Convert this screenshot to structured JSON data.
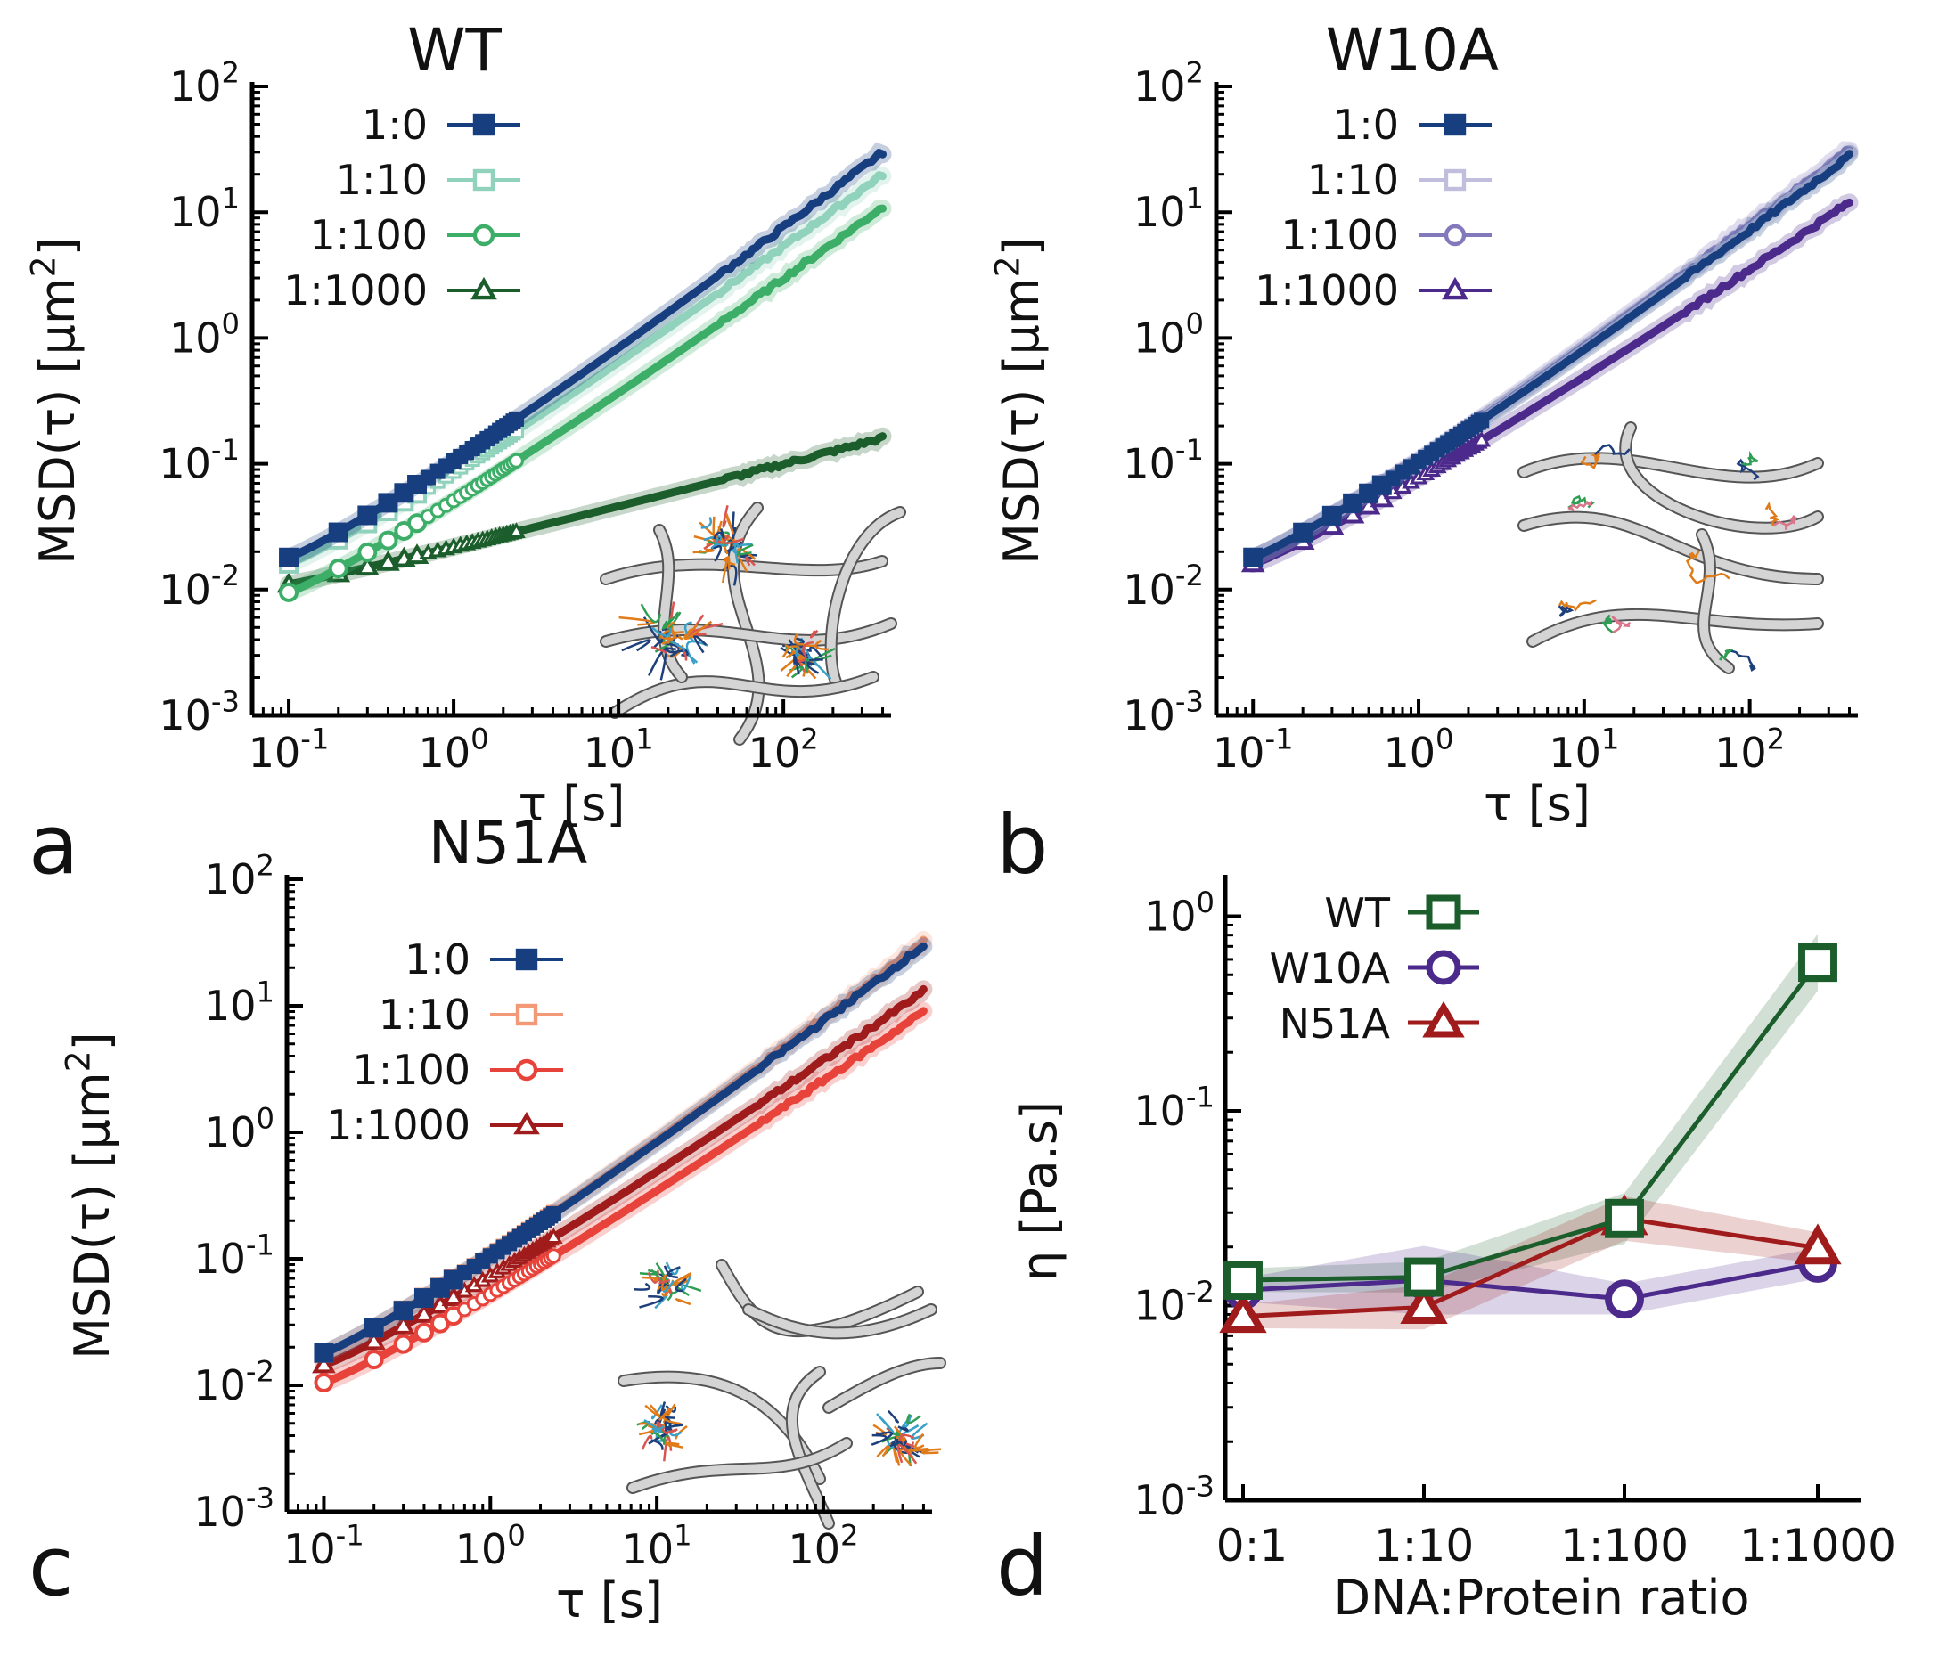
{
  "figure": {
    "panel_labels": [
      "a",
      "b",
      "c",
      "d"
    ]
  },
  "chart_data": [
    {
      "type": "line",
      "panel": "a",
      "title": "WT",
      "xlabel": "τ [s]",
      "ylabel": "MSD(τ) [μm²]",
      "xscale": "log",
      "yscale": "log",
      "xlim": [
        0.06,
        450
      ],
      "ylim": [
        0.001,
        100
      ],
      "xticks": [
        0.1,
        1,
        10,
        100
      ],
      "xtick_labels": [
        {
          "base": "10",
          "exp": "-1"
        },
        {
          "base": "10",
          "exp": "0"
        },
        {
          "base": "10",
          "exp": "1"
        },
        {
          "base": "10",
          "exp": "2"
        }
      ],
      "yticks": [
        0.001,
        0.01,
        0.1,
        1,
        10,
        100
      ],
      "ytick_labels": [
        {
          "base": "10",
          "exp": "-3"
        },
        {
          "base": "10",
          "exp": "-2"
        },
        {
          "base": "10",
          "exp": "-1"
        },
        {
          "base": "10",
          "exp": "0"
        },
        {
          "base": "10",
          "exp": "1"
        },
        {
          "base": "10",
          "exp": "2"
        }
      ],
      "legend_position": "top-left",
      "series": [
        {
          "name": "1:0",
          "color": "#173f80",
          "marker": "square-filled",
          "y0": 0.018,
          "y1": 30
        },
        {
          "name": "1:10",
          "color": "#91d2bc",
          "marker": "square-open",
          "y0": 0.016,
          "y1": 20
        },
        {
          "name": "1:100",
          "color": "#3dae68",
          "marker": "circle-open",
          "y0": 0.0095,
          "y1": 11
        },
        {
          "name": "1:1000",
          "color": "#1b5e2c",
          "marker": "triangle-open",
          "y0": 0.011,
          "y1": 0.16
        }
      ],
      "inset": "network-with-clusters"
    },
    {
      "type": "line",
      "panel": "b",
      "title": "W10A",
      "xlabel": "τ [s]",
      "ylabel": "MSD(τ) [μm²]",
      "xscale": "log",
      "yscale": "log",
      "xlim": [
        0.06,
        450
      ],
      "ylim": [
        0.001,
        100
      ],
      "xticks": [
        0.1,
        1,
        10,
        100
      ],
      "xtick_labels": [
        {
          "base": "10",
          "exp": "-1"
        },
        {
          "base": "10",
          "exp": "0"
        },
        {
          "base": "10",
          "exp": "1"
        },
        {
          "base": "10",
          "exp": "2"
        }
      ],
      "yticks": [
        0.001,
        0.01,
        0.1,
        1,
        10,
        100
      ],
      "ytick_labels": [
        {
          "base": "10",
          "exp": "-3"
        },
        {
          "base": "10",
          "exp": "-2"
        },
        {
          "base": "10",
          "exp": "-1"
        },
        {
          "base": "10",
          "exp": "0"
        },
        {
          "base": "10",
          "exp": "1"
        },
        {
          "base": "10",
          "exp": "2"
        }
      ],
      "legend_position": "top-left",
      "series": [
        {
          "name": "1:0",
          "color": "#173f80",
          "marker": "square-filled",
          "y0": 0.018,
          "y1": 28
        },
        {
          "name": "1:10",
          "color": "#c0bedc",
          "marker": "square-open",
          "y0": 0.018,
          "y1": 30
        },
        {
          "name": "1:100",
          "color": "#8278bc",
          "marker": "circle-open",
          "y0": 0.018,
          "y1": 32
        },
        {
          "name": "1:1000",
          "color": "#4b2a8c",
          "marker": "triangle-open",
          "y0": 0.016,
          "y1": 12
        }
      ],
      "inset": "network-with-chains"
    },
    {
      "type": "line",
      "panel": "c",
      "title": "N51A",
      "xlabel": "τ [s]",
      "ylabel": "MSD(τ) [μm²]",
      "xscale": "log",
      "yscale": "log",
      "xlim": [
        0.06,
        450
      ],
      "ylim": [
        0.001,
        100
      ],
      "xticks": [
        0.1,
        1,
        10,
        100
      ],
      "xtick_labels": [
        {
          "base": "10",
          "exp": "-1"
        },
        {
          "base": "10",
          "exp": "0"
        },
        {
          "base": "10",
          "exp": "1"
        },
        {
          "base": "10",
          "exp": "2"
        }
      ],
      "yticks": [
        0.001,
        0.01,
        0.1,
        1,
        10,
        100
      ],
      "ytick_labels": [
        {
          "base": "10",
          "exp": "-3"
        },
        {
          "base": "10",
          "exp": "-2"
        },
        {
          "base": "10",
          "exp": "-1"
        },
        {
          "base": "10",
          "exp": "0"
        },
        {
          "base": "10",
          "exp": "1"
        },
        {
          "base": "10",
          "exp": "2"
        }
      ],
      "legend_position": "top-left",
      "series": [
        {
          "name": "1:0",
          "color": "#173f80",
          "marker": "square-filled",
          "y0": 0.018,
          "y1": 30
        },
        {
          "name": "1:10",
          "color": "#f29a78",
          "marker": "square-open",
          "y0": 0.018,
          "y1": 32
        },
        {
          "name": "1:100",
          "color": "#e8433a",
          "marker": "circle-open",
          "y0": 0.0105,
          "y1": 9
        },
        {
          "name": "1:1000",
          "color": "#a01b1b",
          "marker": "triangle-open",
          "y0": 0.0145,
          "y1": 13
        }
      ],
      "inset": "network-with-separate-clusters"
    },
    {
      "type": "line",
      "panel": "d",
      "title": "",
      "xlabel": "DNA:Protein ratio",
      "ylabel": "η [Pa.s]",
      "yscale": "log",
      "ylim": [
        0.001,
        1.5
      ],
      "categories": [
        "0:1",
        "1:10",
        "1:100",
        "1:1000"
      ],
      "yticks": [
        0.001,
        0.01,
        0.1,
        1
      ],
      "ytick_labels": [
        {
          "base": "10",
          "exp": "-3"
        },
        {
          "base": "10",
          "exp": "-2"
        },
        {
          "base": "10",
          "exp": "-1"
        },
        {
          "base": "10",
          "exp": "0"
        }
      ],
      "legend_position": "top-left",
      "series": [
        {
          "name": "WT",
          "color": "#1b5e2c",
          "marker": "square-open",
          "values": [
            0.0135,
            0.014,
            0.028,
            0.58
          ]
        },
        {
          "name": "W10A",
          "color": "#4b2a8c",
          "marker": "circle-open",
          "values": [
            0.012,
            0.0135,
            0.0108,
            0.0165
          ]
        },
        {
          "name": "N51A",
          "color": "#a01b1b",
          "marker": "triangle-open",
          "values": [
            0.0088,
            0.0098,
            0.028,
            0.0198
          ]
        }
      ]
    }
  ]
}
